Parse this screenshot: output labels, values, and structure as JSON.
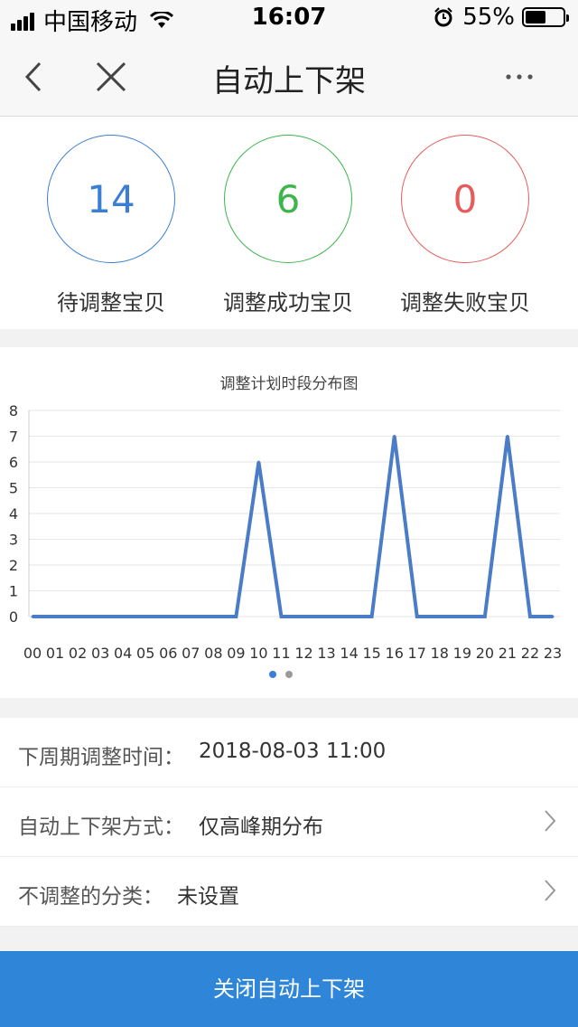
{
  "status_bar": {
    "carrier": "中国移动",
    "time": "16:07",
    "battery": "55%",
    "battery_level": 0.55
  },
  "nav": {
    "title": "自动上下架"
  },
  "stats": [
    {
      "value": "14",
      "label": "待调整宝贝",
      "color": "#3a7fd5"
    },
    {
      "value": "6",
      "label": "调整成功宝贝",
      "color": "#3cb54a"
    },
    {
      "value": "0",
      "label": "调整失败宝贝",
      "color": "#e85b5b"
    }
  ],
  "chart": {
    "title": "调整计划时段分布图",
    "chart_data": {
      "type": "line",
      "title": "调整计划时段分布图",
      "x": [
        "00",
        "01",
        "02",
        "03",
        "04",
        "05",
        "06",
        "07",
        "08",
        "09",
        "10",
        "11",
        "12",
        "13",
        "14",
        "15",
        "16",
        "17",
        "18",
        "19",
        "20",
        "21",
        "22",
        "23"
      ],
      "values": [
        0,
        0,
        0,
        0,
        0,
        0,
        0,
        0,
        0,
        0,
        6,
        0,
        0,
        0,
        0,
        0,
        7,
        0,
        0,
        0,
        0,
        7,
        0,
        0
      ],
      "ylim": [
        0,
        8
      ],
      "yticks": [
        "0",
        "1",
        "2",
        "3",
        "4",
        "5",
        "6",
        "7",
        "8"
      ],
      "color": "#4a7cc7",
      "grid": true
    }
  },
  "settings": [
    {
      "label": "下周期调整时间：",
      "value": "2018-08-03 11:00",
      "chevron": false
    },
    {
      "label": "自动上下架方式：",
      "value": "仅高峰期分布",
      "chevron": true
    },
    {
      "label": "不调整的分类：",
      "value": "未设置",
      "chevron": true
    }
  ],
  "bottom_button": {
    "label": "关闭自动上下架"
  }
}
